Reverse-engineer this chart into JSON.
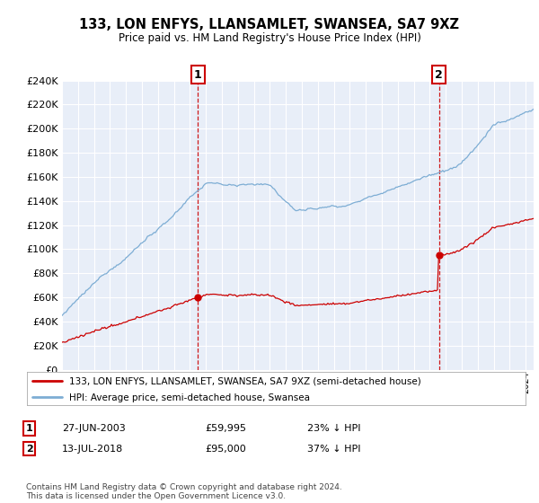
{
  "title": "133, LON ENFYS, LLANSAMLET, SWANSEA, SA7 9XZ",
  "subtitle": "Price paid vs. HM Land Registry's House Price Index (HPI)",
  "legend_property": "133, LON ENFYS, LLANSAMLET, SWANSEA, SA7 9XZ (semi-detached house)",
  "legend_hpi": "HPI: Average price, semi-detached house, Swansea",
  "footnote": "Contains HM Land Registry data © Crown copyright and database right 2024.\nThis data is licensed under the Open Government Licence v3.0.",
  "transaction1_date": "27-JUN-2003",
  "transaction1_price": "£59,995",
  "transaction1_hpi": "23% ↓ HPI",
  "transaction2_date": "13-JUL-2018",
  "transaction2_price": "£95,000",
  "transaction2_hpi": "37% ↓ HPI",
  "property_color": "#cc0000",
  "hpi_color": "#7dadd4",
  "vline_color": "#cc0000",
  "background_color": "#e8eef8",
  "ylim": [
    0,
    240000
  ],
  "yticks": [
    0,
    20000,
    40000,
    60000,
    80000,
    100000,
    120000,
    140000,
    160000,
    180000,
    200000,
    220000,
    240000
  ],
  "transaction1_year": 2003.5,
  "transaction2_year": 2018.58,
  "transaction1_value": 59995,
  "transaction2_value": 95000,
  "xstart": 1995,
  "xend": 2024.5
}
